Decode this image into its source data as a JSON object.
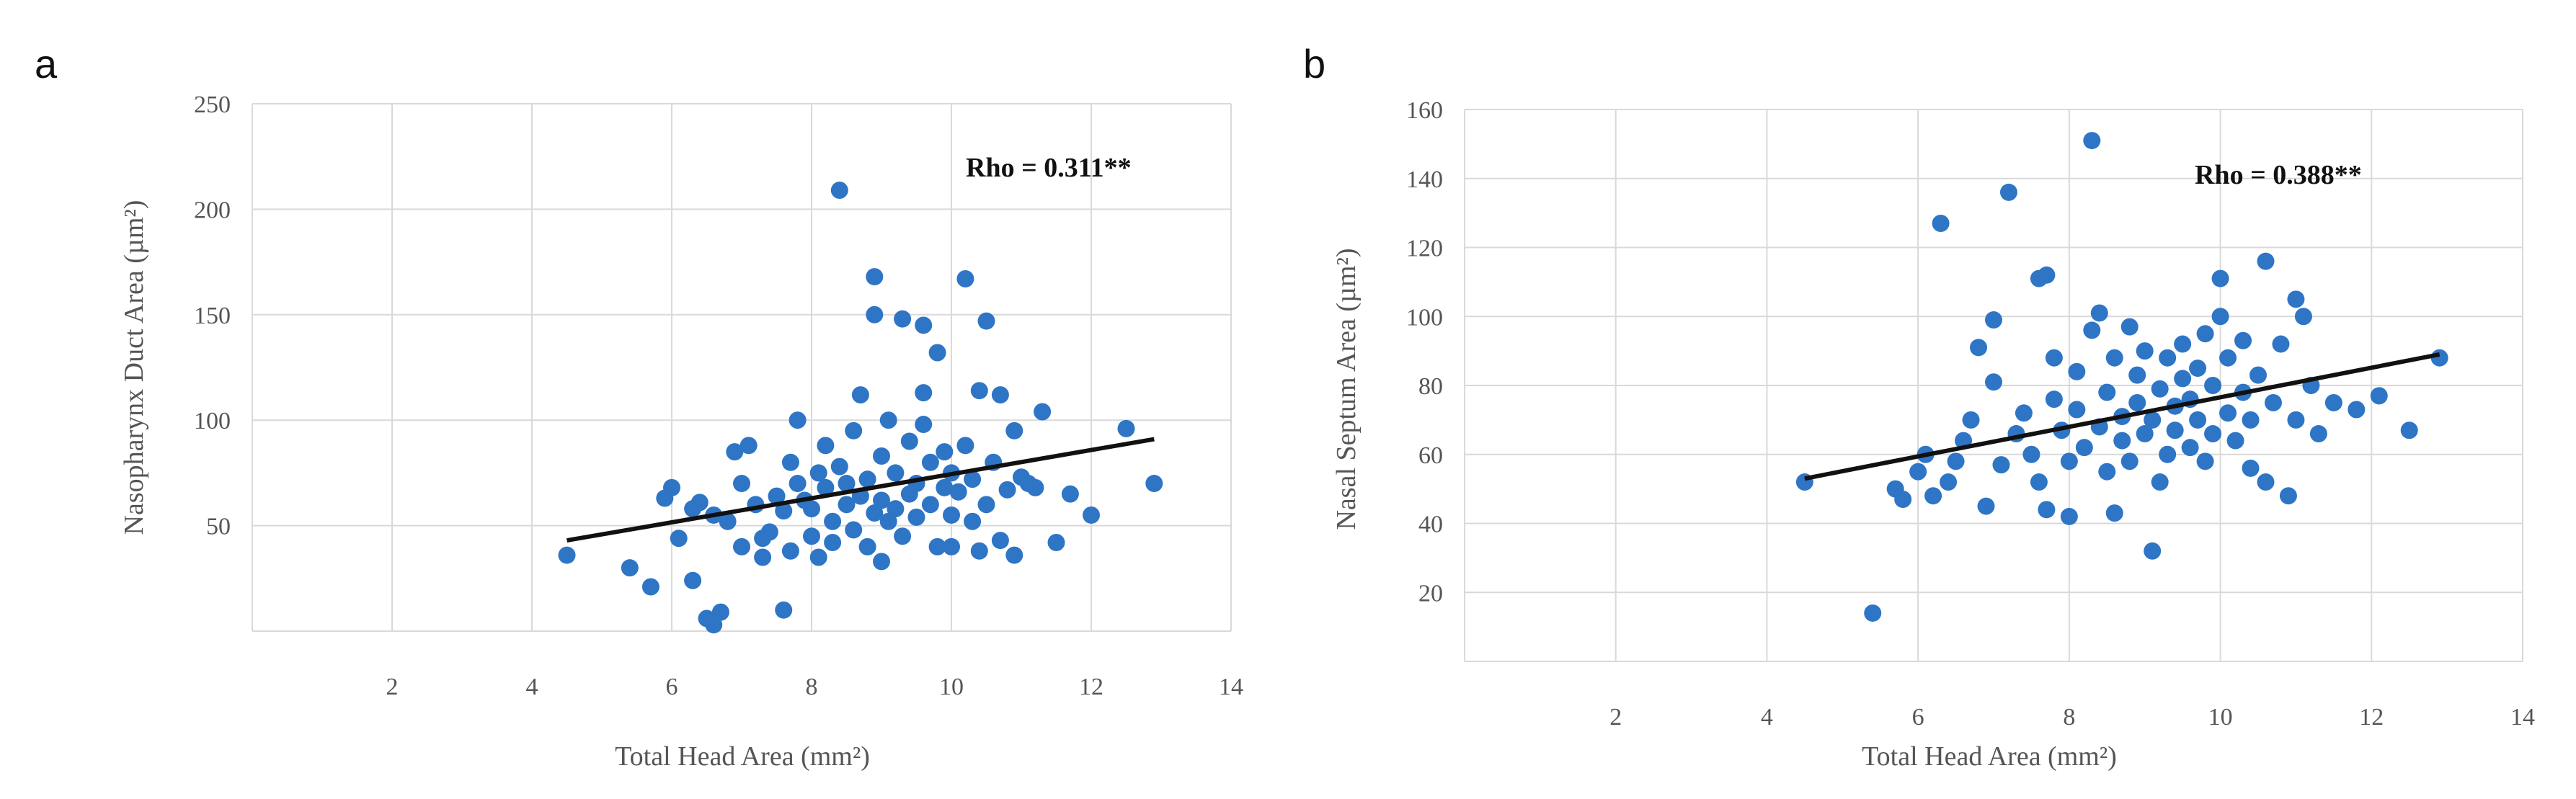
{
  "chart_data": [
    {
      "type": "scatter",
      "panel": "a",
      "xlabel": "Total Head Area (mm²)",
      "ylabel": "Nasopharynx Duct Area (µm²)",
      "annotation": "Rho = 0.311**",
      "xlim": [
        0,
        14
      ],
      "ylim": [
        0,
        250
      ],
      "xticks": [
        "2",
        "4",
        "6",
        "8",
        "10",
        "12",
        "14"
      ],
      "yticks": [
        "50",
        "100",
        "150",
        "200",
        "250"
      ],
      "trendline": {
        "x": [
          4.5,
          12.9
        ],
        "y": [
          43,
          91
        ]
      },
      "color": "#2e75c5",
      "points": [
        [
          4.5,
          36
        ],
        [
          5.4,
          30
        ],
        [
          5.7,
          21
        ],
        [
          5.9,
          63
        ],
        [
          6.0,
          68
        ],
        [
          6.1,
          44
        ],
        [
          6.3,
          24
        ],
        [
          6.3,
          58
        ],
        [
          6.4,
          61
        ],
        [
          6.5,
          6
        ],
        [
          6.6,
          3
        ],
        [
          6.7,
          9
        ],
        [
          6.6,
          55
        ],
        [
          6.8,
          52
        ],
        [
          6.9,
          85
        ],
        [
          7.0,
          40
        ],
        [
          7.0,
          70
        ],
        [
          7.1,
          88
        ],
        [
          7.2,
          60
        ],
        [
          7.3,
          44
        ],
        [
          7.3,
          35
        ],
        [
          7.4,
          47
        ],
        [
          7.5,
          64
        ],
        [
          7.6,
          57
        ],
        [
          7.6,
          10
        ],
        [
          7.7,
          80
        ],
        [
          7.7,
          38
        ],
        [
          7.8,
          70
        ],
        [
          7.8,
          100
        ],
        [
          7.9,
          62
        ],
        [
          8.0,
          58
        ],
        [
          8.0,
          45
        ],
        [
          8.1,
          75
        ],
        [
          8.1,
          35
        ],
        [
          8.2,
          68
        ],
        [
          8.2,
          88
        ],
        [
          8.3,
          52
        ],
        [
          8.3,
          42
        ],
        [
          8.4,
          209
        ],
        [
          8.4,
          78
        ],
        [
          8.5,
          60
        ],
        [
          8.5,
          70
        ],
        [
          8.6,
          48
        ],
        [
          8.6,
          95
        ],
        [
          8.7,
          64
        ],
        [
          8.7,
          112
        ],
        [
          8.8,
          72
        ],
        [
          8.8,
          40
        ],
        [
          8.9,
          56
        ],
        [
          8.9,
          150
        ],
        [
          8.9,
          168
        ],
        [
          9.0,
          33
        ],
        [
          9.0,
          62
        ],
        [
          9.0,
          83
        ],
        [
          9.1,
          100
        ],
        [
          9.1,
          52
        ],
        [
          9.2,
          58
        ],
        [
          9.2,
          75
        ],
        [
          9.3,
          148
        ],
        [
          9.3,
          45
        ],
        [
          9.4,
          65
        ],
        [
          9.4,
          90
        ],
        [
          9.5,
          54
        ],
        [
          9.5,
          70
        ],
        [
          9.6,
          145
        ],
        [
          9.6,
          98
        ],
        [
          9.6,
          113
        ],
        [
          9.7,
          60
        ],
        [
          9.7,
          80
        ],
        [
          9.8,
          132
        ],
        [
          9.8,
          40
        ],
        [
          9.9,
          68
        ],
        [
          9.9,
          85
        ],
        [
          10.0,
          55
        ],
        [
          10.0,
          75
        ],
        [
          10.0,
          40
        ],
        [
          10.1,
          66
        ],
        [
          10.2,
          167
        ],
        [
          10.2,
          88
        ],
        [
          10.3,
          52
        ],
        [
          10.3,
          72
        ],
        [
          10.4,
          114
        ],
        [
          10.4,
          38
        ],
        [
          10.5,
          147
        ],
        [
          10.5,
          60
        ],
        [
          10.6,
          80
        ],
        [
          10.7,
          112
        ],
        [
          10.7,
          43
        ],
        [
          10.8,
          67
        ],
        [
          10.9,
          95
        ],
        [
          10.9,
          36
        ],
        [
          11.0,
          73
        ],
        [
          11.1,
          70
        ],
        [
          11.2,
          68
        ],
        [
          11.3,
          104
        ],
        [
          11.5,
          42
        ],
        [
          11.7,
          65
        ],
        [
          12.0,
          55
        ],
        [
          12.5,
          96
        ],
        [
          12.9,
          70
        ]
      ]
    },
    {
      "type": "scatter",
      "panel": "b",
      "xlabel": "Total Head Area (mm²)",
      "ylabel": "Nasal Septum  Area (µm²)",
      "annotation": "Rho = 0.388**",
      "xlim": [
        0,
        14
      ],
      "ylim": [
        0,
        160
      ],
      "xticks": [
        "2",
        "4",
        "6",
        "8",
        "10",
        "12",
        "14"
      ],
      "yticks": [
        "20",
        "40",
        "60",
        "80",
        "100",
        "120",
        "140",
        "160"
      ],
      "trendline": {
        "x": [
          4.5,
          12.9
        ],
        "y": [
          53,
          89
        ]
      },
      "color": "#2e75c5",
      "points": [
        [
          4.5,
          52
        ],
        [
          5.4,
          14
        ],
        [
          5.7,
          50
        ],
        [
          5.8,
          47
        ],
        [
          6.0,
          55
        ],
        [
          6.1,
          60
        ],
        [
          6.2,
          48
        ],
        [
          6.3,
          127
        ],
        [
          6.4,
          52
        ],
        [
          6.5,
          58
        ],
        [
          6.6,
          64
        ],
        [
          6.7,
          70
        ],
        [
          6.8,
          91
        ],
        [
          6.9,
          45
        ],
        [
          7.0,
          99
        ],
        [
          7.0,
          81
        ],
        [
          7.1,
          57
        ],
        [
          7.2,
          136
        ],
        [
          7.3,
          66
        ],
        [
          7.4,
          72
        ],
        [
          7.5,
          60
        ],
        [
          7.6,
          111
        ],
        [
          7.6,
          52
        ],
        [
          7.7,
          112
        ],
        [
          7.7,
          44
        ],
        [
          7.8,
          76
        ],
        [
          7.8,
          88
        ],
        [
          7.9,
          67
        ],
        [
          8.0,
          58
        ],
        [
          8.0,
          42
        ],
        [
          8.1,
          73
        ],
        [
          8.1,
          84
        ],
        [
          8.2,
          62
        ],
        [
          8.3,
          151
        ],
        [
          8.3,
          96
        ],
        [
          8.4,
          101
        ],
        [
          8.4,
          68
        ],
        [
          8.5,
          55
        ],
        [
          8.5,
          78
        ],
        [
          8.6,
          88
        ],
        [
          8.6,
          43
        ],
        [
          8.7,
          64
        ],
        [
          8.7,
          71
        ],
        [
          8.8,
          97
        ],
        [
          8.8,
          58
        ],
        [
          8.9,
          75
        ],
        [
          8.9,
          83
        ],
        [
          9.0,
          66
        ],
        [
          9.0,
          90
        ],
        [
          9.1,
          32
        ],
        [
          9.1,
          70
        ],
        [
          9.2,
          52
        ],
        [
          9.2,
          79
        ],
        [
          9.3,
          60
        ],
        [
          9.3,
          88
        ],
        [
          9.4,
          74
        ],
        [
          9.4,
          67
        ],
        [
          9.5,
          82
        ],
        [
          9.5,
          92
        ],
        [
          9.6,
          62
        ],
        [
          9.6,
          76
        ],
        [
          9.7,
          85
        ],
        [
          9.7,
          70
        ],
        [
          9.8,
          95
        ],
        [
          9.8,
          58
        ],
        [
          9.9,
          80
        ],
        [
          9.9,
          66
        ],
        [
          10.0,
          100
        ],
        [
          10.0,
          111
        ],
        [
          10.1,
          72
        ],
        [
          10.1,
          88
        ],
        [
          10.2,
          64
        ],
        [
          10.3,
          78
        ],
        [
          10.3,
          93
        ],
        [
          10.4,
          56
        ],
        [
          10.4,
          70
        ],
        [
          10.5,
          83
        ],
        [
          10.6,
          116
        ],
        [
          10.6,
          52
        ],
        [
          10.7,
          75
        ],
        [
          10.8,
          92
        ],
        [
          10.9,
          48
        ],
        [
          11.0,
          105
        ],
        [
          11.0,
          70
        ],
        [
          11.1,
          100
        ],
        [
          11.2,
          80
        ],
        [
          11.3,
          66
        ],
        [
          11.5,
          75
        ],
        [
          11.8,
          73
        ],
        [
          12.1,
          77
        ],
        [
          12.5,
          67
        ],
        [
          12.9,
          88
        ]
      ]
    }
  ]
}
